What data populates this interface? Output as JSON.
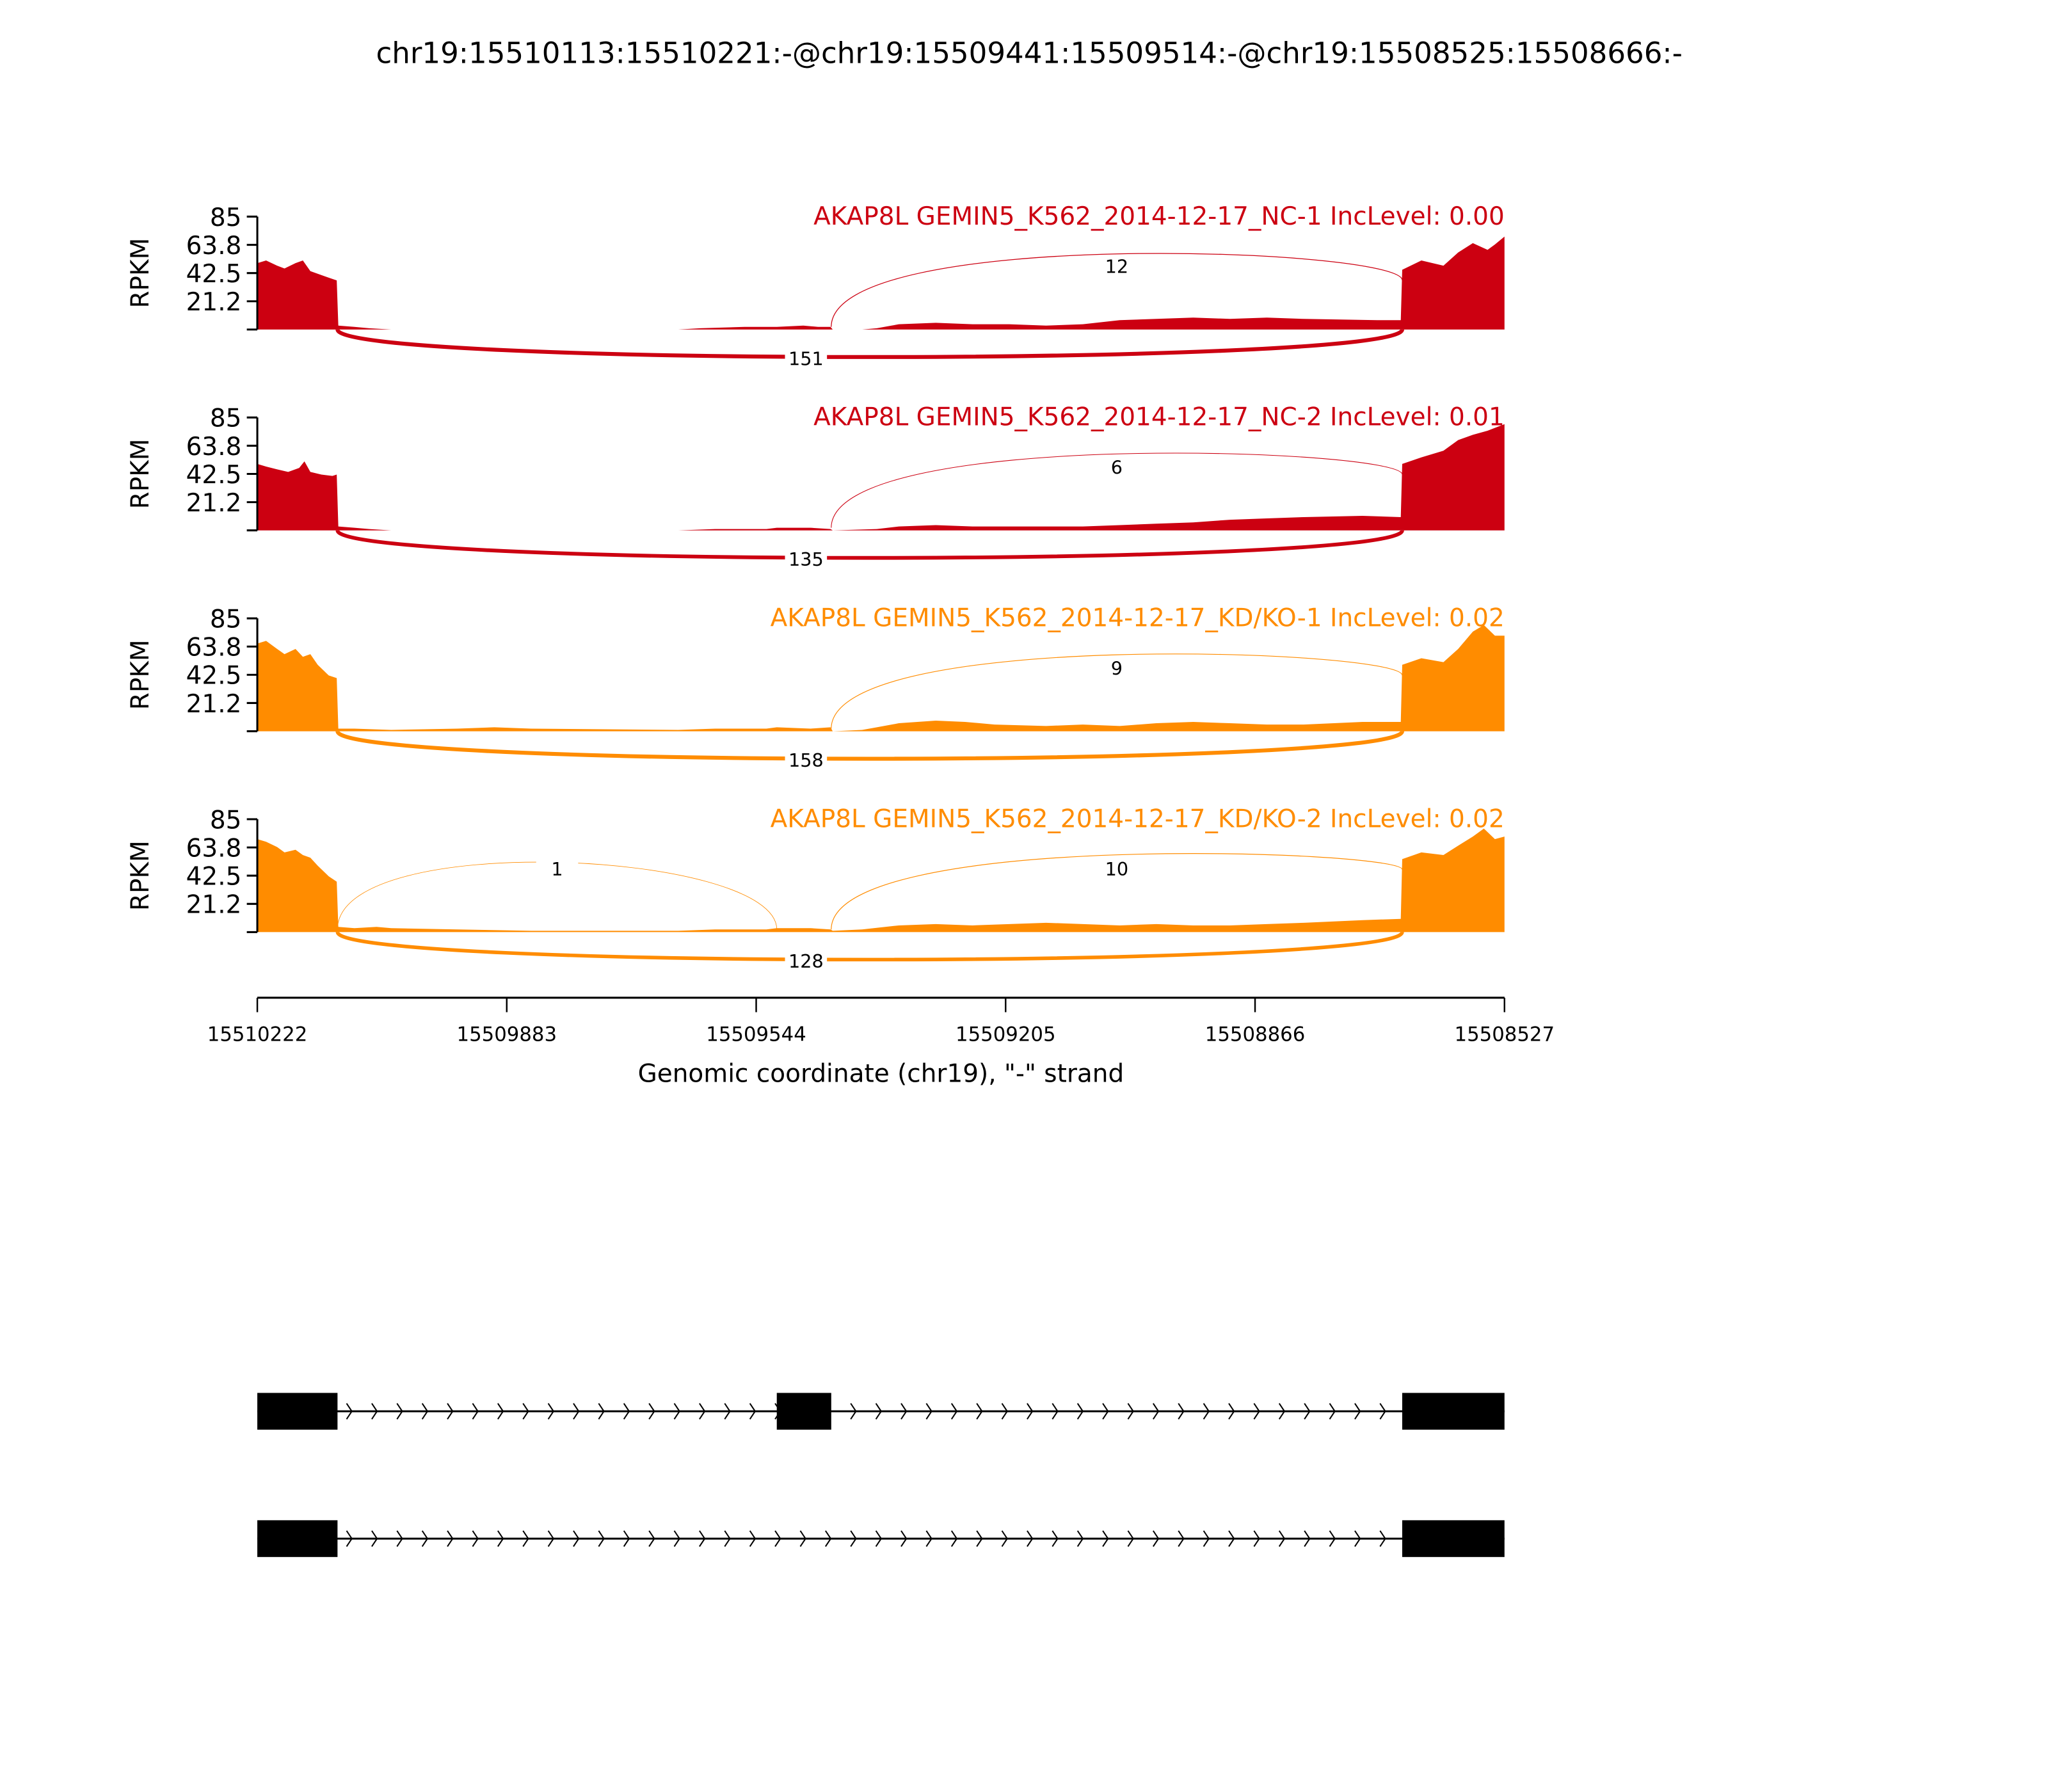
{
  "chart_data": {
    "type": "area",
    "title": "chr19:15510113:15510221:-@chr19:15509441:15509514:-@chr19:15508525:15508666:-",
    "xlabel": "Genomic coordinate (chr19), \"-\" strand",
    "ylabel": "RPKM",
    "xlim": [
      15510222,
      15508527
    ],
    "ylim": [
      0,
      85
    ],
    "x_ticks": [
      "15510222",
      "15509883",
      "15509544",
      "15509205",
      "15508866",
      "15508527"
    ],
    "y_ticks": [
      "85",
      "63.8",
      "42.5",
      "21.2"
    ],
    "grid": false,
    "colors": {
      "NC": "#cc0011",
      "KD": "#ff8c00",
      "gene": "#000000"
    },
    "exons": [
      [
        15510222,
        15510113
      ],
      [
        15509516,
        15509442
      ],
      [
        15508666,
        15508527
      ]
    ],
    "panels": [
      {
        "label": "AKAP8L GEMIN5_K562_2014-12-17_NC-1 IncLevel: 0.00",
        "group": "NC",
        "junctions": [
          {
            "from": 15509442,
            "to": 15508666,
            "count": "12",
            "side": "above"
          },
          {
            "from": 15510113,
            "to": 15508666,
            "count": "151",
            "side": "below"
          }
        ],
        "coverage": [
          [
            15510222,
            50
          ],
          [
            15510210,
            52
          ],
          [
            15510195,
            48
          ],
          [
            15510185,
            46
          ],
          [
            15510170,
            50
          ],
          [
            15510160,
            52
          ],
          [
            15510150,
            44
          ],
          [
            15510140,
            42
          ],
          [
            15510125,
            39
          ],
          [
            15510114,
            37
          ],
          [
            15510112,
            3
          ],
          [
            15510090,
            2
          ],
          [
            15510070,
            1
          ],
          [
            15510040,
            0
          ],
          [
            15509650,
            0
          ],
          [
            15509620,
            1
          ],
          [
            15509560,
            2
          ],
          [
            15509530,
            2
          ],
          [
            15509516,
            2
          ],
          [
            15509480,
            3
          ],
          [
            15509460,
            2
          ],
          [
            15509443,
            2
          ],
          [
            15509440,
            0
          ],
          [
            15509400,
            0
          ],
          [
            15509380,
            1
          ],
          [
            15509350,
            4
          ],
          [
            15509300,
            5
          ],
          [
            15509250,
            4
          ],
          [
            15509200,
            4
          ],
          [
            15509150,
            3
          ],
          [
            15509100,
            4
          ],
          [
            15509050,
            7
          ],
          [
            15509000,
            8
          ],
          [
            15508950,
            9
          ],
          [
            15508900,
            8
          ],
          [
            15508850,
            9
          ],
          [
            15508800,
            8
          ],
          [
            15508700,
            7
          ],
          [
            15508668,
            7
          ],
          [
            15508666,
            45
          ],
          [
            15508640,
            52
          ],
          [
            15508610,
            48
          ],
          [
            15508590,
            58
          ],
          [
            15508570,
            65
          ],
          [
            15508550,
            60
          ],
          [
            15508540,
            64
          ],
          [
            15508527,
            70
          ]
        ]
      },
      {
        "label": "AKAP8L GEMIN5_K562_2014-12-17_NC-2 IncLevel: 0.01",
        "group": "NC",
        "junctions": [
          {
            "from": 15509442,
            "to": 15508666,
            "count": "6",
            "side": "above"
          },
          {
            "from": 15510113,
            "to": 15508666,
            "count": "135",
            "side": "below"
          }
        ],
        "coverage": [
          [
            15510222,
            50
          ],
          [
            15510210,
            48
          ],
          [
            15510195,
            46
          ],
          [
            15510180,
            44
          ],
          [
            15510165,
            47
          ],
          [
            15510158,
            52
          ],
          [
            15510150,
            44
          ],
          [
            15510135,
            42
          ],
          [
            15510120,
            41
          ],
          [
            15510114,
            42
          ],
          [
            15510112,
            3
          ],
          [
            15510090,
            2
          ],
          [
            15510070,
            1
          ],
          [
            15510040,
            0
          ],
          [
            15509650,
            0
          ],
          [
            15509600,
            1
          ],
          [
            15509530,
            1
          ],
          [
            15509516,
            2
          ],
          [
            15509470,
            2
          ],
          [
            15509443,
            1
          ],
          [
            15509440,
            0
          ],
          [
            15509380,
            1
          ],
          [
            15509350,
            3
          ],
          [
            15509300,
            4
          ],
          [
            15509250,
            3
          ],
          [
            15509200,
            3
          ],
          [
            15509150,
            3
          ],
          [
            15509100,
            3
          ],
          [
            15509050,
            4
          ],
          [
            15509000,
            5
          ],
          [
            15508950,
            6
          ],
          [
            15508900,
            8
          ],
          [
            15508850,
            9
          ],
          [
            15508800,
            10
          ],
          [
            15508720,
            11
          ],
          [
            15508668,
            10
          ],
          [
            15508666,
            50
          ],
          [
            15508640,
            55
          ],
          [
            15508610,
            60
          ],
          [
            15508590,
            68
          ],
          [
            15508570,
            72
          ],
          [
            15508550,
            75
          ],
          [
            15508527,
            80
          ]
        ]
      },
      {
        "label": "AKAP8L GEMIN5_K562_2014-12-17_KD/KO-1 IncLevel: 0.02",
        "group": "KD",
        "junctions": [
          {
            "from": 15509442,
            "to": 15508666,
            "count": "9",
            "side": "above"
          },
          {
            "from": 15510113,
            "to": 15508666,
            "count": "158",
            "side": "below"
          }
        ],
        "coverage": [
          [
            15510222,
            66
          ],
          [
            15510210,
            68
          ],
          [
            15510195,
            62
          ],
          [
            15510185,
            58
          ],
          [
            15510170,
            62
          ],
          [
            15510160,
            56
          ],
          [
            15510150,
            58
          ],
          [
            15510140,
            50
          ],
          [
            15510125,
            42
          ],
          [
            15510114,
            40
          ],
          [
            15510112,
            2
          ],
          [
            15510090,
            2
          ],
          [
            15510040,
            1
          ],
          [
            15509950,
            2
          ],
          [
            15509900,
            3
          ],
          [
            15509850,
            2
          ],
          [
            15509650,
            1
          ],
          [
            15509600,
            2
          ],
          [
            15509530,
            2
          ],
          [
            15509516,
            3
          ],
          [
            15509470,
            2
          ],
          [
            15509443,
            3
          ],
          [
            15509440,
            0
          ],
          [
            15509400,
            1
          ],
          [
            15509380,
            3
          ],
          [
            15509350,
            6
          ],
          [
            15509300,
            8
          ],
          [
            15509260,
            7
          ],
          [
            15509220,
            5
          ],
          [
            15509150,
            4
          ],
          [
            15509100,
            5
          ],
          [
            15509050,
            4
          ],
          [
            15509000,
            6
          ],
          [
            15508950,
            7
          ],
          [
            15508900,
            6
          ],
          [
            15508850,
            5
          ],
          [
            15508800,
            5
          ],
          [
            15508720,
            7
          ],
          [
            15508668,
            7
          ],
          [
            15508666,
            50
          ],
          [
            15508640,
            55
          ],
          [
            15508610,
            52
          ],
          [
            15508590,
            62
          ],
          [
            15508570,
            75
          ],
          [
            15508555,
            80
          ],
          [
            15508540,
            72
          ],
          [
            15508527,
            72
          ]
        ]
      },
      {
        "label": "AKAP8L GEMIN5_K562_2014-12-17_KD/KO-2 IncLevel: 0.02",
        "group": "KD",
        "junctions": [
          {
            "from": 15510113,
            "to": 15509516,
            "count": "1",
            "side": "above"
          },
          {
            "from": 15509442,
            "to": 15508666,
            "count": "10",
            "side": "above"
          },
          {
            "from": 15510113,
            "to": 15508666,
            "count": "128",
            "side": "below"
          }
        ],
        "coverage": [
          [
            15510222,
            70
          ],
          [
            15510210,
            68
          ],
          [
            15510195,
            64
          ],
          [
            15510185,
            60
          ],
          [
            15510170,
            62
          ],
          [
            15510160,
            58
          ],
          [
            15510150,
            56
          ],
          [
            15510140,
            50
          ],
          [
            15510125,
            42
          ],
          [
            15510114,
            38
          ],
          [
            15510112,
            4
          ],
          [
            15510090,
            3
          ],
          [
            15510060,
            4
          ],
          [
            15510040,
            3
          ],
          [
            15509950,
            2
          ],
          [
            15509850,
            1
          ],
          [
            15509650,
            1
          ],
          [
            15509600,
            2
          ],
          [
            15509530,
            2
          ],
          [
            15509516,
            3
          ],
          [
            15509470,
            3
          ],
          [
            15509443,
            2
          ],
          [
            15509440,
            1
          ],
          [
            15509400,
            2
          ],
          [
            15509350,
            5
          ],
          [
            15509300,
            6
          ],
          [
            15509250,
            5
          ],
          [
            15509200,
            6
          ],
          [
            15509150,
            7
          ],
          [
            15509100,
            6
          ],
          [
            15509050,
            5
          ],
          [
            15509000,
            6
          ],
          [
            15508950,
            5
          ],
          [
            15508900,
            5
          ],
          [
            15508850,
            6
          ],
          [
            15508800,
            7
          ],
          [
            15508720,
            9
          ],
          [
            15508668,
            10
          ],
          [
            15508666,
            55
          ],
          [
            15508640,
            60
          ],
          [
            15508610,
            58
          ],
          [
            15508590,
            65
          ],
          [
            15508570,
            72
          ],
          [
            15508555,
            78
          ],
          [
            15508540,
            70
          ],
          [
            15508527,
            72
          ]
        ]
      }
    ],
    "isoforms": [
      {
        "exons": [
          [
            15510222,
            15510113
          ],
          [
            15509516,
            15509442
          ],
          [
            15508666,
            15508527
          ]
        ]
      },
      {
        "exons": [
          [
            15510222,
            15510113
          ],
          [
            15508666,
            15508527
          ]
        ]
      }
    ]
  }
}
